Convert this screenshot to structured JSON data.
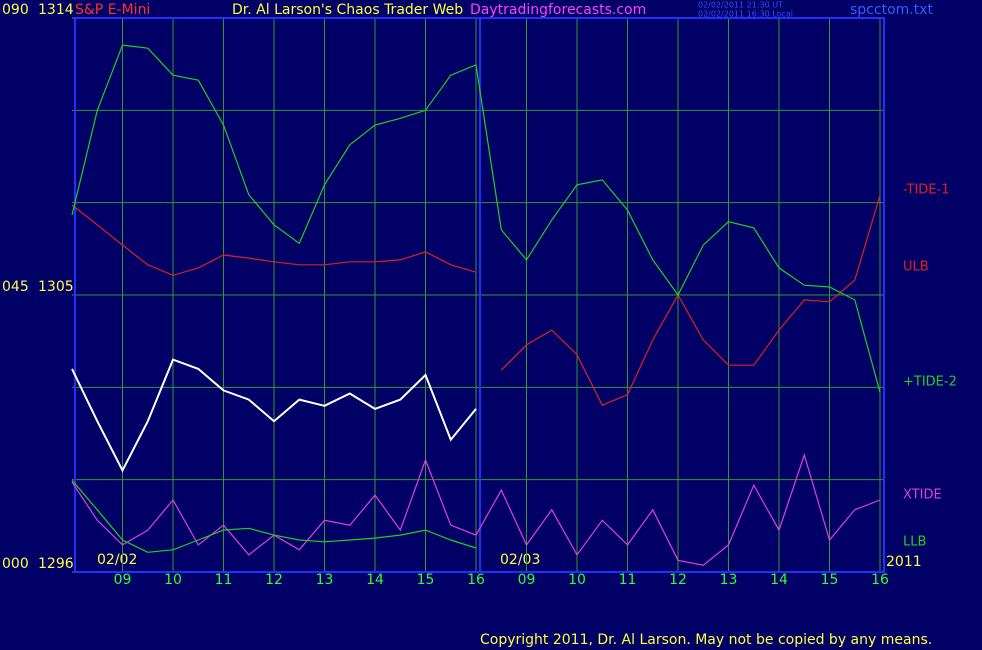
{
  "chart_data": {
    "type": "line",
    "title": "Dr. Al Larson's Chaos Trader Web",
    "subtitle": "S&P E-Mini",
    "annotations": [
      "Daytradingforecasts.com",
      "02/02/2011 21:30 UT",
      "02/02/2011 16:30 Local",
      "spcctom.txt",
      "02/02",
      "02/03",
      "2011",
      "Copyright 2011, Dr. Al Larson. May not be copied by any means."
    ],
    "x": [
      0,
      0.5,
      1,
      1.5,
      2,
      2.5,
      3,
      3.5,
      4,
      4.5,
      5,
      5.5,
      6,
      6.5,
      7,
      7.5,
      8,
      8.5,
      9,
      9.5,
      10,
      10.5,
      11,
      11.5,
      12,
      12.5,
      13,
      13.5,
      14,
      14.5,
      15,
      15.5,
      16
    ],
    "xlim": [
      0,
      16
    ],
    "xticks": [
      {
        "value": 1,
        "label": "09"
      },
      {
        "value": 2,
        "label": "10"
      },
      {
        "value": 3,
        "label": "11"
      },
      {
        "value": 4,
        "label": "12"
      },
      {
        "value": 5,
        "label": "13"
      },
      {
        "value": 6,
        "label": "14"
      },
      {
        "value": 7,
        "label": "15"
      },
      {
        "value": 8,
        "label": "16"
      },
      {
        "value": 9,
        "label": "09"
      },
      {
        "value": 10,
        "label": "10"
      },
      {
        "value": 11,
        "label": "11"
      },
      {
        "value": 12,
        "label": "12"
      },
      {
        "value": 13,
        "label": "13"
      },
      {
        "value": 14,
        "label": "14"
      },
      {
        "value": 15,
        "label": "15"
      },
      {
        "value": 16,
        "label": "16"
      }
    ],
    "ylim": [
      0,
      90
    ],
    "yticks": [
      {
        "value": 0,
        "label": "000"
      },
      {
        "value": 15,
        "label": null
      },
      {
        "value": 30,
        "label": null
      },
      {
        "value": 45,
        "label": "045"
      },
      {
        "value": 60,
        "label": null
      },
      {
        "value": 75,
        "label": null
      },
      {
        "value": 90,
        "label": "090"
      }
    ],
    "y2lim": [
      1296,
      1314
    ],
    "y2ticks": [
      1296,
      1305,
      1314
    ],
    "grid": true,
    "series": [
      {
        "name": "-TIDE-1",
        "color": "#e02020",
        "values": [
          null,
          null,
          null,
          null,
          null,
          null,
          null,
          null,
          null,
          null,
          null,
          null,
          null,
          null,
          null,
          null,
          null,
          32.8,
          36.9,
          39.3,
          35.3,
          27.1,
          28.8,
          37.7,
          45.0,
          37.7,
          33.6,
          33.6,
          39.3,
          44.2,
          43.9,
          47.4,
          61.2
        ]
      },
      {
        "name": "ULB",
        "color": "#e02020",
        "values": [
          59.6,
          56.4,
          53.1,
          49.9,
          48.2,
          49.4,
          51.5,
          51.0,
          50.4,
          49.9,
          49.9,
          50.4,
          50.4,
          50.7,
          52.0,
          49.9,
          48.7,
          null,
          null,
          null,
          null,
          null,
          null,
          null,
          null,
          null,
          null,
          null,
          null,
          null,
          null,
          null,
          null
        ]
      },
      {
        "name": "+TIDE-2",
        "color": "#20d020",
        "values": [
          58.0,
          75.0,
          85.6,
          85.1,
          80.7,
          79.9,
          72.6,
          61.3,
          56.4,
          53.4,
          62.9,
          69.4,
          72.6,
          73.7,
          75.0,
          80.7,
          82.4,
          55.6,
          50.7,
          57.2,
          62.9,
          63.7,
          58.8,
          50.7,
          45.0,
          53.1,
          56.9,
          55.9,
          49.4,
          46.6,
          46.3,
          44.2,
          29.2
        ]
      },
      {
        "name": "XTIDE",
        "color": "#e040e0",
        "values": [
          14.6,
          8.4,
          4.4,
          6.8,
          11.7,
          4.4,
          7.6,
          2.8,
          6.0,
          3.6,
          8.4,
          7.6,
          12.5,
          6.8,
          18.2,
          7.6,
          6.0,
          13.3,
          4.4,
          10.1,
          2.8,
          8.4,
          4.4,
          10.1,
          1.9,
          1.1,
          4.4,
          14.1,
          6.8,
          19.0,
          5.2,
          10.1,
          11.7
        ]
      },
      {
        "name": "LLB",
        "color": "#20d020",
        "values": [
          14.9,
          10.1,
          5.2,
          3.2,
          3.6,
          5.2,
          6.8,
          7.1,
          6.0,
          5.2,
          4.9,
          5.2,
          5.5,
          6.0,
          6.8,
          5.2,
          3.9,
          null,
          null,
          null,
          null,
          null,
          null,
          null,
          null,
          null,
          null,
          null,
          null,
          null,
          null,
          null,
          null
        ]
      },
      {
        "color": "#ffffff",
        "axis": "y2",
        "values": [
          1302.6,
          1300.9,
          1299.3,
          1300.9,
          1302.9,
          1302.6,
          1301.9,
          1301.6,
          1300.9,
          1301.6,
          1301.4,
          1301.8,
          1301.3,
          1301.6,
          1302.4,
          1300.3,
          1301.3,
          null,
          null,
          null,
          null,
          null,
          null,
          null,
          null,
          null,
          null,
          null,
          null,
          null,
          null,
          null,
          null
        ]
      }
    ]
  }
}
